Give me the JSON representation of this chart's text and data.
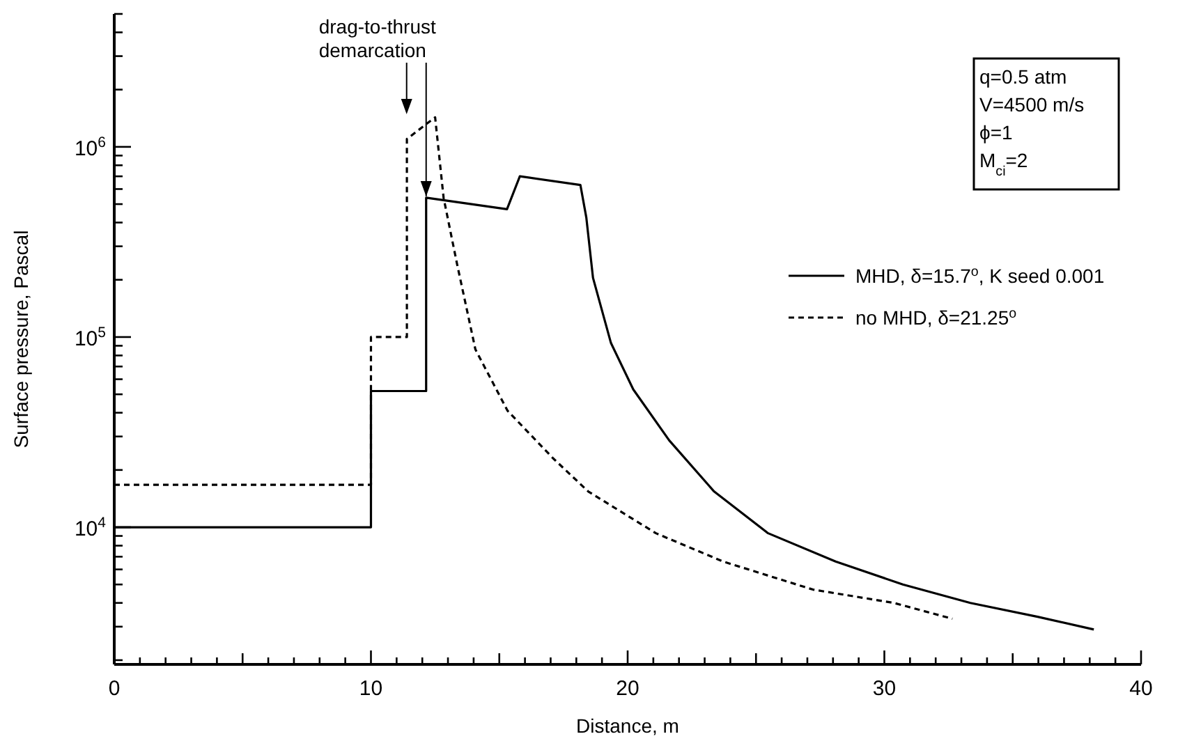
{
  "chart_data": {
    "type": "line",
    "xlabel": "Distance, m",
    "ylabel": "Surface pressure, Pascal",
    "log": "y",
    "grid": false,
    "legend": "right",
    "marker": "none",
    "xlim": [
      0,
      40
    ],
    "ylim": [
      1900,
      5000000
    ],
    "xticks": [
      0,
      {
        "value": 1,
        "label": null
      },
      {
        "value": 2,
        "label": null
      },
      {
        "value": 3,
        "label": null
      },
      {
        "value": 4,
        "label": null
      },
      {
        "value": 5,
        "label": null
      },
      {
        "value": 6,
        "label": null
      },
      {
        "value": 7,
        "label": null
      },
      {
        "value": 8,
        "label": null
      },
      {
        "value": 9,
        "label": null
      },
      10,
      {
        "value": 11,
        "label": null
      },
      {
        "value": 12,
        "label": null
      },
      {
        "value": 13,
        "label": null
      },
      {
        "value": 14,
        "label": null
      },
      {
        "value": 15,
        "label": null
      },
      {
        "value": 16,
        "label": null
      },
      {
        "value": 17,
        "label": null
      },
      {
        "value": 18,
        "label": null
      },
      {
        "value": 19,
        "label": null
      },
      20,
      {
        "value": 21,
        "label": null
      },
      {
        "value": 22,
        "label": null
      },
      {
        "value": 23,
        "label": null
      },
      {
        "value": 24,
        "label": null
      },
      {
        "value": 25,
        "label": null
      },
      {
        "value": 26,
        "label": null
      },
      {
        "value": 27,
        "label": null
      },
      {
        "value": 28,
        "label": null
      },
      {
        "value": 29,
        "label": null
      },
      30,
      {
        "value": 31,
        "label": null
      },
      {
        "value": 32,
        "label": null
      },
      {
        "value": 33,
        "label": null
      },
      {
        "value": 34,
        "label": null
      },
      {
        "value": 35,
        "label": null
      },
      {
        "value": 36,
        "label": null
      },
      {
        "value": 37,
        "label": null
      },
      {
        "value": 38,
        "label": null
      },
      {
        "value": 39,
        "label": null
      },
      40
    ],
    "yticks": [
      {
        "value": 2000,
        "label": null
      },
      {
        "value": 3000,
        "label": null
      },
      {
        "value": 4000,
        "label": null
      },
      {
        "value": 5000,
        "label": null
      },
      {
        "value": 6000,
        "label": null
      },
      {
        "value": 7000,
        "label": null
      },
      {
        "value": 8000,
        "label": null
      },
      {
        "value": 9000,
        "label": null
      },
      {
        "value": 10000,
        "label": "10$^{4}$"
      },
      {
        "value": 20000,
        "label": null
      },
      {
        "value": 30000,
        "label": null
      },
      {
        "value": 40000,
        "label": null
      },
      {
        "value": 50000,
        "label": null
      },
      {
        "value": 60000,
        "label": null
      },
      {
        "value": 70000,
        "label": null
      },
      {
        "value": 80000,
        "label": null
      },
      {
        "value": 90000,
        "label": null
      },
      {
        "value": 100000,
        "label": "10$^{5}$"
      },
      {
        "value": 200000,
        "label": null
      },
      {
        "value": 300000,
        "label": null
      },
      {
        "value": 400000,
        "label": null
      },
      {
        "value": 500000,
        "label": null
      },
      {
        "value": 600000,
        "label": null
      },
      {
        "value": 700000,
        "label": null
      },
      {
        "value": 800000,
        "label": null
      },
      {
        "value": 900000,
        "label": null
      },
      {
        "value": 1000000,
        "label": "10$^{6}$"
      },
      {
        "value": 2000000,
        "label": null
      },
      {
        "value": 3000000,
        "label": null
      },
      {
        "value": 4000000,
        "label": null
      },
      {
        "value": 5000000,
        "label": null
      }
    ],
    "series": [
      {
        "name": "MHD, δ=15.7$^{o}$, K seed 0.001",
        "color": "#000000",
        "line_style": "solid",
        "x": [
          0,
          10,
          10,
          12.15,
          12.15,
          15.3,
          15.8,
          18.16,
          18.39,
          18.65,
          19.35,
          20.22,
          21.62,
          23.37,
          25.47,
          28.1,
          30.72,
          33.35,
          35.97,
          38.16
        ],
        "values": [
          10000,
          10000,
          52000,
          52000,
          540000,
          470000,
          700000,
          630000,
          425000,
          205000,
          93000,
          53000,
          28600,
          15400,
          9300,
          6600,
          5000,
          4000,
          3380,
          2900
        ]
      },
      {
        "name": "no MHD, δ=21.25$^{o}$",
        "color": "#000000",
        "line_style": "dashed",
        "x": [
          0,
          10,
          10,
          11.4,
          11.4,
          12.5,
          12.83,
          13.36,
          14.07,
          15.32,
          17.1,
          18.47,
          21.1,
          23.72,
          27.22,
          30.37,
          32.65
        ],
        "values": [
          16700,
          16700,
          100000,
          100000,
          1100000,
          1430000,
          540000,
          240000,
          86000,
          41000,
          23000,
          15400,
          9300,
          6600,
          4700,
          4000,
          3300
        ]
      }
    ],
    "annotations": [
      {
        "text": "drag-to-thrust demarcation",
        "x": 12.15,
        "y": 540000
      },
      "q=0.5 atm",
      "V=4500 m/s",
      "ϕ=1",
      "M$_{ci}$=2"
    ]
  }
}
